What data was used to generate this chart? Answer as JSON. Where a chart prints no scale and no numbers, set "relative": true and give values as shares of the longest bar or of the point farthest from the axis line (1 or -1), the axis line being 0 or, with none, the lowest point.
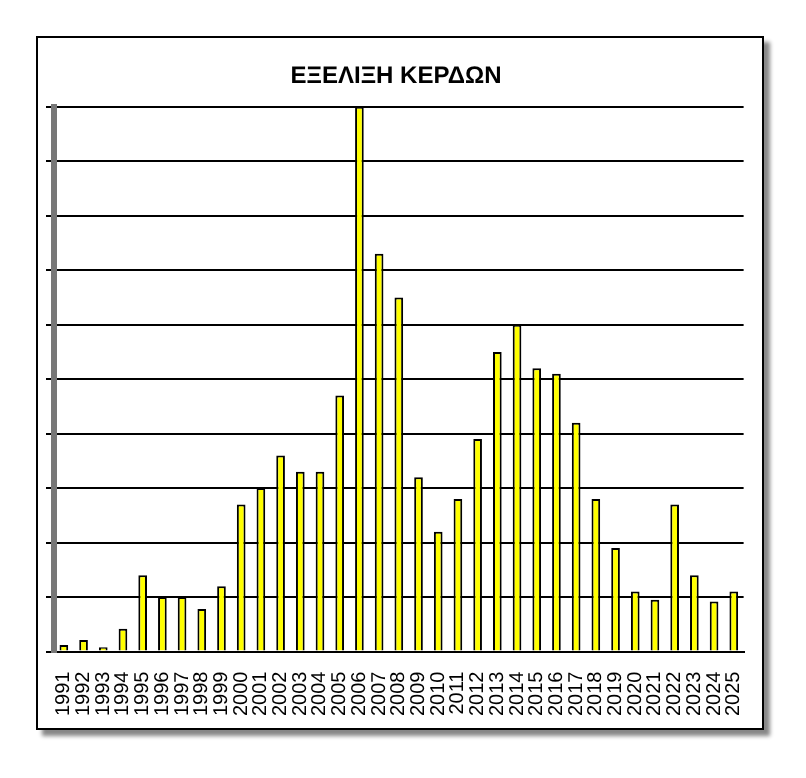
{
  "chart_data": {
    "type": "bar",
    "title": "ΕΞΕΛΙΞΗ ΚΕΡΔΩΝ",
    "relative": true,
    "grid": "y",
    "legend": false,
    "categories": [
      "1991",
      "1992",
      "1993",
      "1994",
      "1995",
      "1996",
      "1997",
      "1998",
      "1999",
      "2000",
      "2001",
      "2002",
      "2003",
      "2004",
      "2005",
      "2006",
      "2007",
      "2008",
      "2009",
      "2010",
      "2011",
      "2012",
      "2013",
      "2014",
      "2015",
      "2016",
      "2017",
      "2018",
      "2019",
      "2020",
      "2021",
      "2022",
      "2023",
      "2024",
      "2025"
    ],
    "series": [
      {
        "color": "#ffff00",
        "values": [
          0.012,
          0.021,
          0.008,
          0.042,
          0.14,
          0.1,
          0.1,
          0.078,
          0.12,
          0.27,
          0.3,
          0.36,
          0.33,
          0.33,
          0.47,
          1,
          0.73,
          0.65,
          0.32,
          0.22,
          0.28,
          0.39,
          0.55,
          0.6,
          0.52,
          0.51,
          0.42,
          0.28,
          0.19,
          0.11,
          0.095,
          0.27,
          0.14,
          0.092,
          0.11
        ]
      }
    ]
  }
}
